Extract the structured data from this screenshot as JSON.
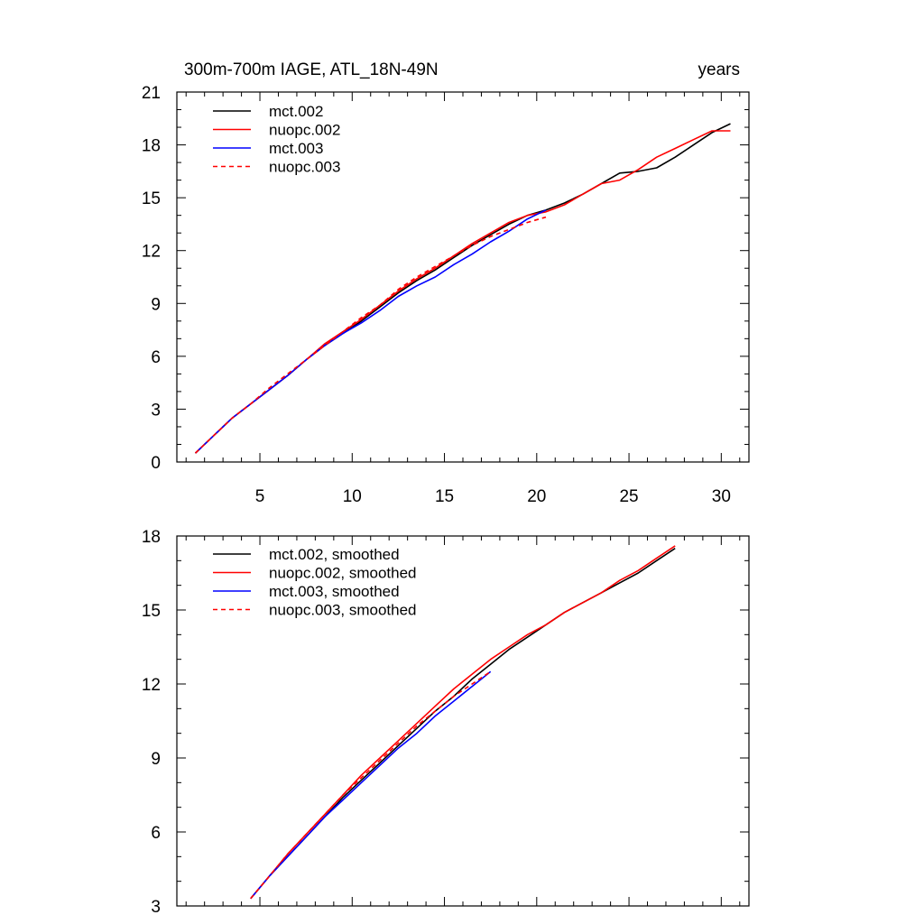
{
  "chart_data": [
    {
      "type": "line",
      "title": "300m-700m IAGE, ATL_18N-49N",
      "title_right": "years",
      "xlabel": "",
      "ylabel": "",
      "xlim": [
        0.5,
        31.5
      ],
      "ylim": [
        0,
        21
      ],
      "xticks": [
        5,
        10,
        15,
        20,
        25,
        30
      ],
      "xtick_labels": [
        "5",
        "10",
        "15",
        "20",
        "25",
        "30"
      ],
      "yticks": [
        0,
        3,
        6,
        9,
        12,
        15,
        18,
        21
      ],
      "ytick_labels": [
        "0",
        "3",
        "6",
        "9",
        "12",
        "15",
        "18",
        "21"
      ],
      "legend_position": "top-left",
      "series": [
        {
          "name": "mct.002",
          "color": "#000000",
          "dash": "solid",
          "x": [
            1.5,
            2.5,
            3.5,
            4.5,
            5.5,
            6.5,
            7.5,
            8.5,
            9.5,
            10.5,
            11.5,
            12.5,
            13.5,
            14.5,
            15.5,
            16.5,
            17.5,
            18.5,
            19.5,
            20.5,
            21.5,
            22.5,
            23.5,
            24.5,
            25.5,
            26.5,
            27.5,
            28.5,
            29.5,
            30.5
          ],
          "values": [
            0.5,
            1.5,
            2.5,
            3.3,
            4.1,
            4.9,
            5.8,
            6.6,
            7.3,
            8.0,
            8.8,
            9.6,
            10.3,
            10.9,
            11.6,
            12.3,
            12.9,
            13.5,
            14.0,
            14.3,
            14.7,
            15.2,
            15.8,
            16.4,
            16.5,
            16.7,
            17.3,
            18.0,
            18.7,
            19.2
          ]
        },
        {
          "name": "nuopc.002",
          "color": "#ff0000",
          "dash": "solid",
          "x": [
            1.5,
            2.5,
            3.5,
            4.5,
            5.5,
            6.5,
            7.5,
            8.5,
            9.5,
            10.5,
            11.5,
            12.5,
            13.5,
            14.5,
            15.5,
            16.5,
            17.5,
            18.5,
            19.5,
            20.5,
            21.5,
            22.5,
            23.5,
            24.5,
            25.5,
            26.5,
            27.5,
            28.5,
            29.5,
            30.5
          ],
          "values": [
            0.5,
            1.5,
            2.5,
            3.3,
            4.1,
            4.9,
            5.8,
            6.7,
            7.4,
            8.1,
            8.9,
            9.7,
            10.4,
            11.0,
            11.7,
            12.4,
            13.0,
            13.6,
            14.0,
            14.2,
            14.6,
            15.2,
            15.8,
            16.0,
            16.6,
            17.3,
            17.8,
            18.3,
            18.8,
            18.8
          ]
        },
        {
          "name": "mct.003",
          "color": "#0000ff",
          "dash": "solid",
          "x": [
            1.5,
            2.5,
            3.5,
            4.5,
            5.5,
            6.5,
            7.5,
            8.5,
            9.5,
            10.5,
            11.5,
            12.5,
            13.5,
            14.5,
            15.5,
            16.5,
            17.5,
            18.5,
            19.5,
            20.5
          ],
          "values": [
            0.5,
            1.5,
            2.5,
            3.3,
            4.1,
            4.9,
            5.8,
            6.6,
            7.3,
            7.9,
            8.6,
            9.4,
            10.0,
            10.5,
            11.2,
            11.8,
            12.5,
            13.1,
            13.8,
            14.3
          ]
        },
        {
          "name": "nuopc.003",
          "color": "#ff0000",
          "dash": "dashed",
          "x": [
            1.5,
            2.5,
            3.5,
            4.5,
            5.5,
            6.5,
            7.5,
            8.5,
            9.5,
            10.5,
            11.5,
            12.5,
            13.5,
            14.5,
            15.5,
            16.5,
            17.5,
            18.5,
            19.5,
            20.5
          ],
          "values": [
            0.5,
            1.5,
            2.5,
            3.3,
            4.2,
            5.0,
            5.8,
            6.6,
            7.4,
            8.2,
            8.9,
            9.8,
            10.5,
            11.1,
            11.7,
            12.3,
            12.8,
            13.2,
            13.6,
            13.9
          ]
        }
      ]
    },
    {
      "type": "line",
      "title": "",
      "xlabel": "",
      "ylabel": "",
      "xlim": [
        0.5,
        31.5
      ],
      "ylim": [
        3,
        18
      ],
      "xticks": [
        5,
        10,
        15,
        20,
        25,
        30
      ],
      "yticks": [
        3,
        6,
        9,
        12,
        15,
        18
      ],
      "ytick_labels": [
        "3",
        "6",
        "9",
        "12",
        "15",
        "18"
      ],
      "legend_position": "top-left",
      "series": [
        {
          "name": "mct.002, smoothed",
          "color": "#000000",
          "dash": "solid",
          "x": [
            4.5,
            5.5,
            6.5,
            7.5,
            8.5,
            9.5,
            10.5,
            11.5,
            12.5,
            13.5,
            14.5,
            15.5,
            16.5,
            17.5,
            18.5,
            19.5,
            20.5,
            21.5,
            22.5,
            23.5,
            24.5,
            25.5,
            26.5,
            27.5
          ],
          "values": [
            3.3,
            4.2,
            5.0,
            5.8,
            6.6,
            7.4,
            8.1,
            8.8,
            9.5,
            10.2,
            10.9,
            11.5,
            12.2,
            12.8,
            13.4,
            13.9,
            14.4,
            14.9,
            15.3,
            15.7,
            16.1,
            16.5,
            17.0,
            17.5
          ]
        },
        {
          "name": "nuopc.002, smoothed",
          "color": "#ff0000",
          "dash": "solid",
          "x": [
            4.5,
            5.5,
            6.5,
            7.5,
            8.5,
            9.5,
            10.5,
            11.5,
            12.5,
            13.5,
            14.5,
            15.5,
            16.5,
            17.5,
            18.5,
            19.5,
            20.5,
            21.5,
            22.5,
            23.5,
            24.5,
            25.5,
            26.5,
            27.5
          ],
          "values": [
            3.3,
            4.2,
            5.1,
            5.9,
            6.7,
            7.5,
            8.3,
            9.0,
            9.7,
            10.4,
            11.1,
            11.8,
            12.4,
            13.0,
            13.5,
            14.0,
            14.4,
            14.9,
            15.3,
            15.7,
            16.2,
            16.6,
            17.1,
            17.6
          ]
        },
        {
          "name": "mct.003, smoothed",
          "color": "#0000ff",
          "dash": "solid",
          "x": [
            4.5,
            5.5,
            6.5,
            7.5,
            8.5,
            9.5,
            10.5,
            11.5,
            12.5,
            13.5,
            14.5,
            15.5,
            16.5,
            17.5
          ],
          "values": [
            3.3,
            4.2,
            5.0,
            5.8,
            6.6,
            7.3,
            8.0,
            8.7,
            9.4,
            10.0,
            10.7,
            11.3,
            11.9,
            12.5
          ]
        },
        {
          "name": "nuopc.003, smoothed",
          "color": "#ff0000",
          "dash": "dashed",
          "x": [
            4.5,
            5.5,
            6.5,
            7.5,
            8.5,
            9.5,
            10.5,
            11.5,
            12.5,
            13.5,
            14.5,
            15.5,
            16.5,
            17.5
          ],
          "values": [
            3.3,
            4.2,
            5.1,
            5.9,
            6.7,
            7.5,
            8.2,
            8.9,
            9.6,
            10.3,
            10.9,
            11.5,
            12.0,
            12.5
          ]
        }
      ]
    }
  ]
}
